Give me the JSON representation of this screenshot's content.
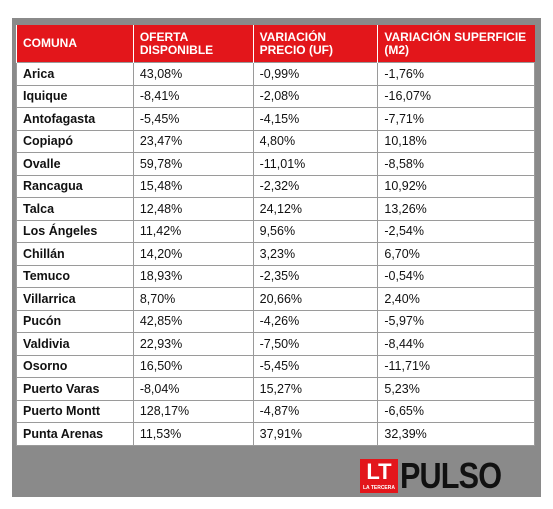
{
  "table": {
    "header": [
      "COMUNA",
      "OFERTA DISPONIBLE",
      "VARIACIÓN PRECIO (UF)",
      "VARIACIÓN SUPERFICIE (M2)"
    ],
    "rows": [
      [
        "Arica",
        "43,08%",
        "-0,99%",
        "-1,76%"
      ],
      [
        "Iquique",
        "-8,41%",
        "-2,08%",
        "-16,07%"
      ],
      [
        "Antofagasta",
        "-5,45%",
        "-4,15%",
        "-7,71%"
      ],
      [
        "Copiapó",
        "23,47%",
        "4,80%",
        "10,18%"
      ],
      [
        "Ovalle",
        "59,78%",
        "-11,01%",
        "-8,58%"
      ],
      [
        "Rancagua",
        "15,48%",
        "-2,32%",
        "10,92%"
      ],
      [
        "Talca",
        "12,48%",
        "24,12%",
        "13,26%"
      ],
      [
        "Los Ángeles",
        "11,42%",
        "9,56%",
        "-2,54%"
      ],
      [
        "Chillán",
        "14,20%",
        "3,23%",
        "6,70%"
      ],
      [
        "Temuco",
        "18,93%",
        "-2,35%",
        "-0,54%"
      ],
      [
        "Villarrica",
        "8,70%",
        "20,66%",
        "2,40%"
      ],
      [
        "Pucón",
        "42,85%",
        "-4,26%",
        "-5,97%"
      ],
      [
        "Valdivia",
        "22,93%",
        "-7,50%",
        "-8,44%"
      ],
      [
        "Osorno",
        "16,50%",
        "-5,45%",
        "-11,71%"
      ],
      [
        "Puerto Varas",
        "-8,04%",
        "15,27%",
        "5,23%"
      ],
      [
        "Puerto Montt",
        "128,17%",
        "-4,87%",
        "-6,65%"
      ],
      [
        "Punta Arenas",
        "11,53%",
        "37,91%",
        "32,39%"
      ]
    ]
  },
  "logo": {
    "mark": "LT",
    "mark_caption": "LA TERCERA",
    "name": "PULSO"
  }
}
